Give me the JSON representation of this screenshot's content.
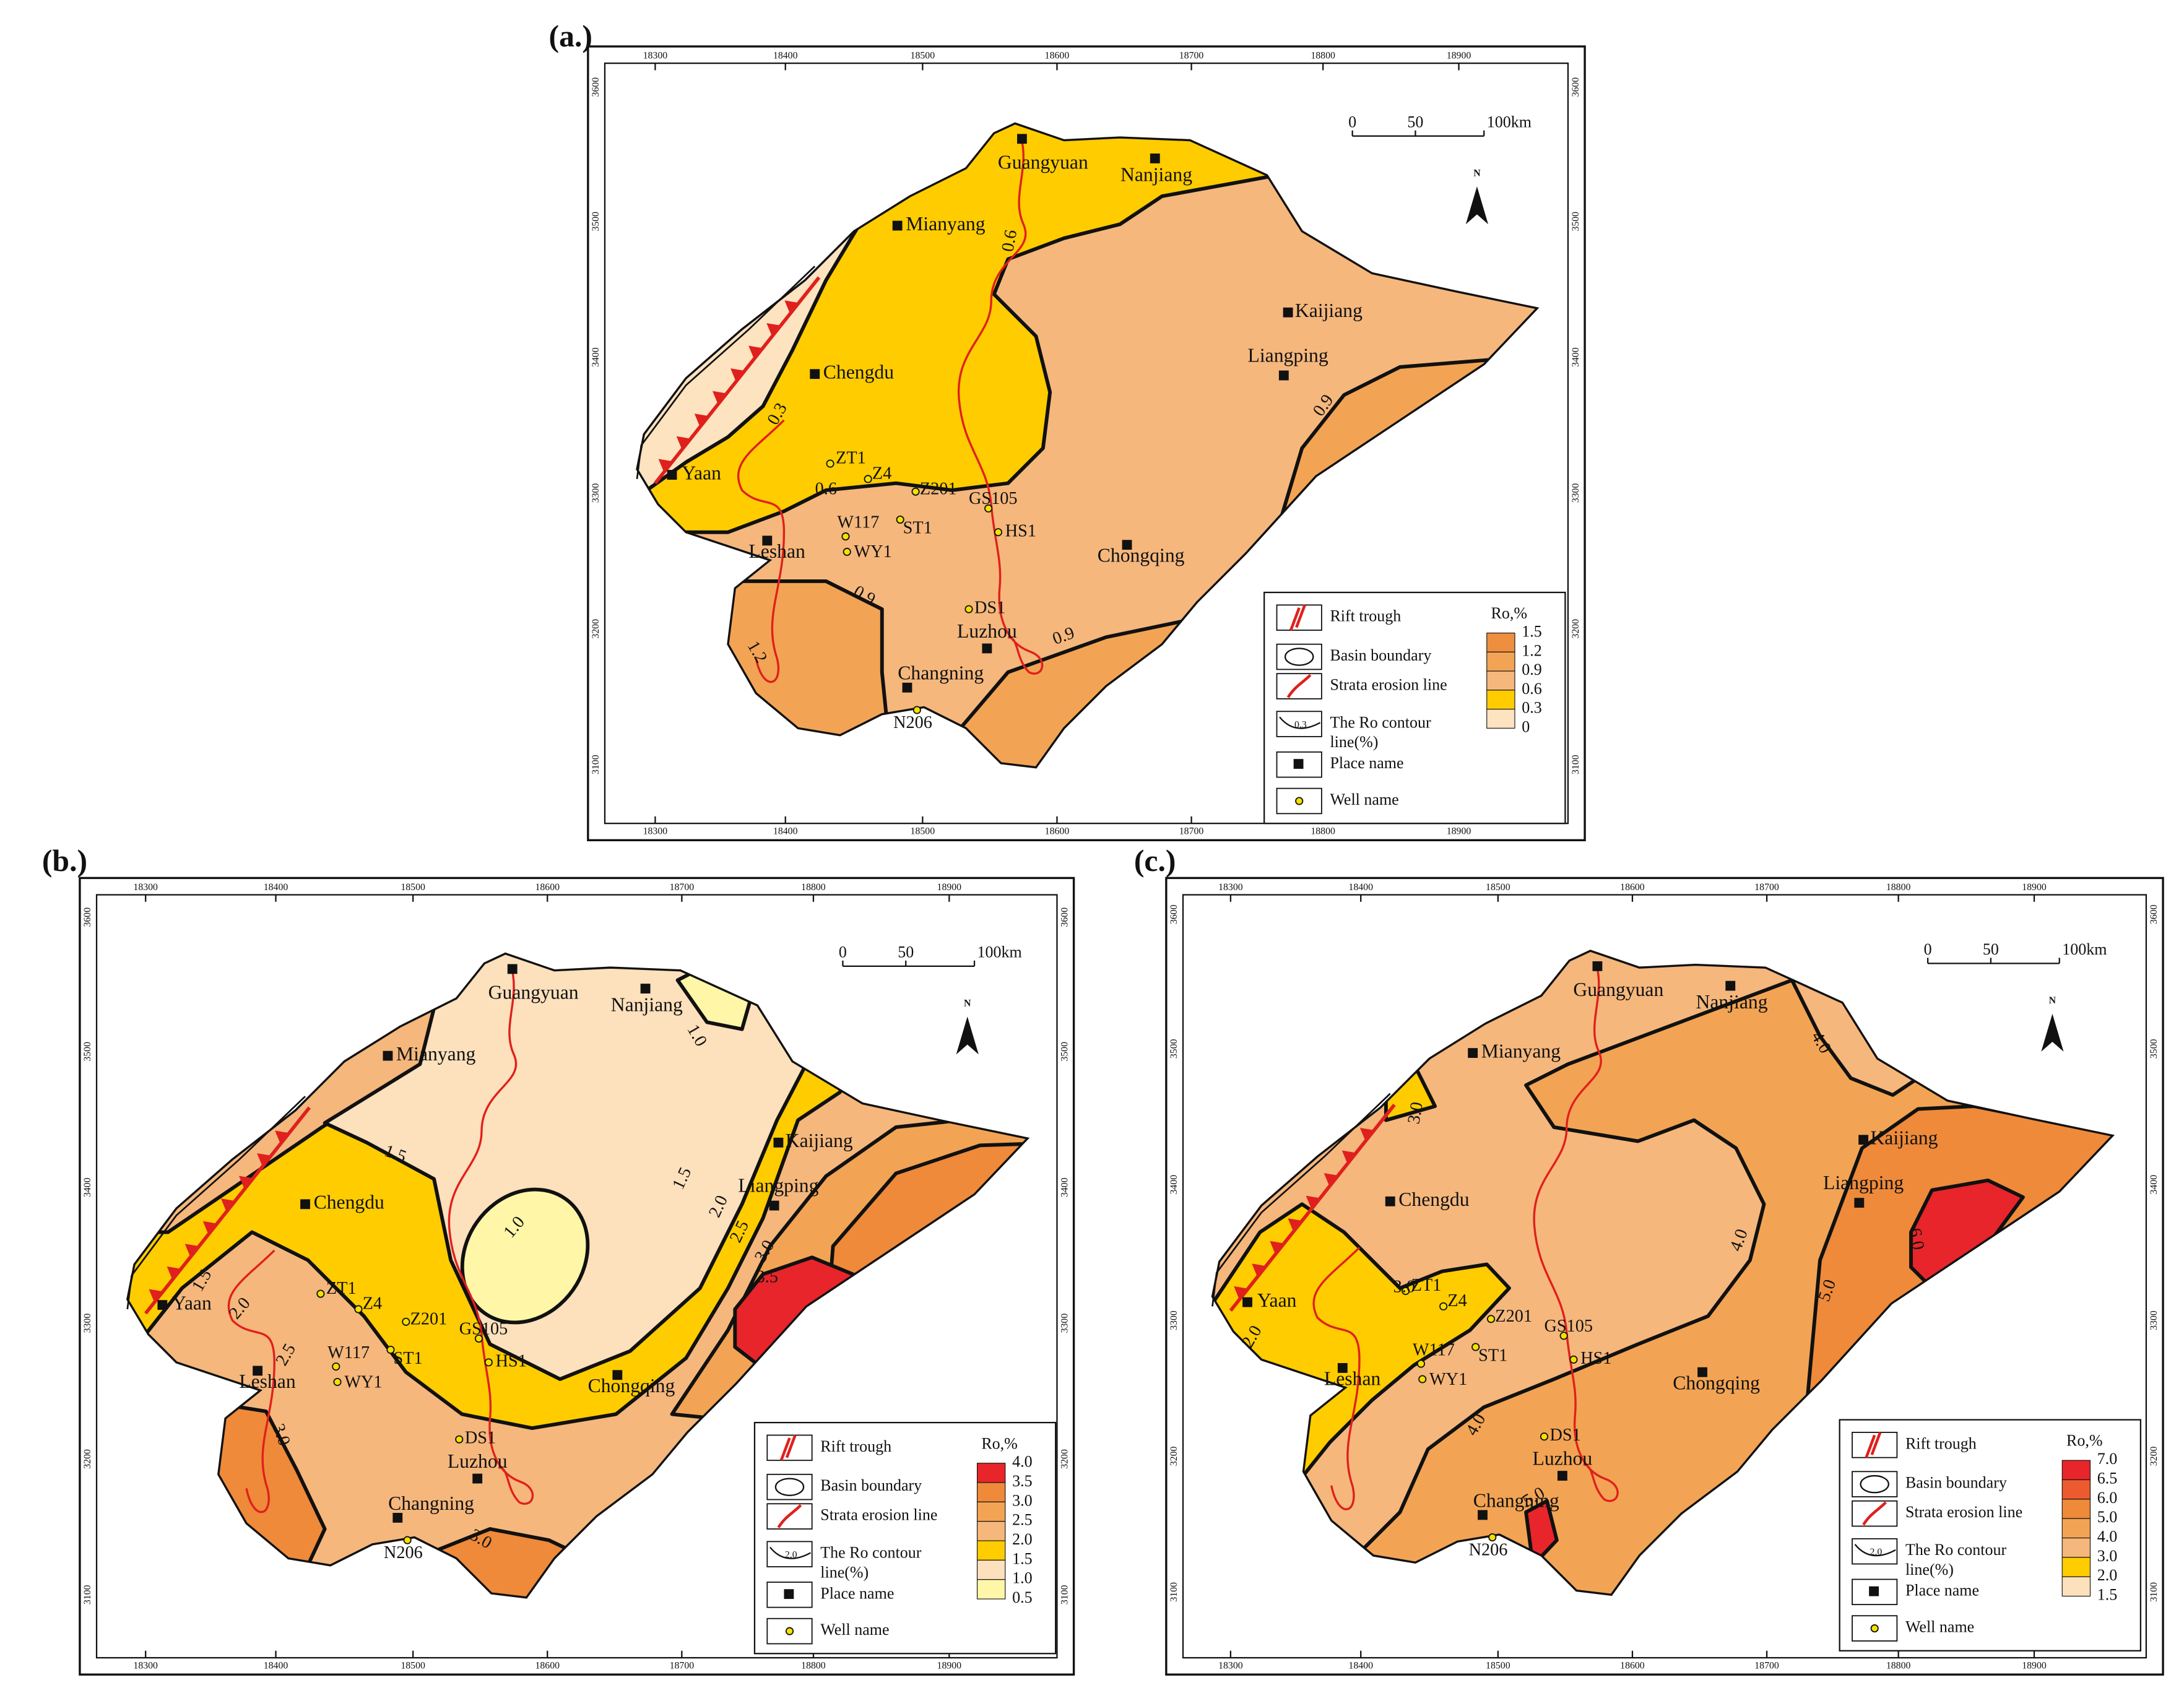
{
  "panels": [
    {
      "label": "(a.)",
      "scale_bar": [
        "0",
        "50",
        "100km"
      ],
      "north": "N",
      "x_labels": [
        "18300",
        "18400",
        "18500",
        "18600",
        "18700",
        "18800",
        "18900"
      ],
      "y_labels": [
        "3600",
        "3500",
        "3400",
        "3300",
        "3200",
        "3100"
      ],
      "places": [
        "Guangyuan",
        "Nanjiang",
        "Mianyang",
        "Kaijiang",
        "Liangping",
        "Chengdu",
        "Yaan",
        "Leshan",
        "Chongqing",
        "Luzhou",
        "Changning"
      ],
      "wells": [
        "ZT1",
        "Z4",
        "Z201",
        "GS105",
        "HS1",
        "ST1",
        "W117",
        "WY1",
        "DS1",
        "N206"
      ],
      "contours": [
        "0.6",
        "0.3",
        "0.6",
        "0.9",
        "1.2",
        "0.9",
        "0.9"
      ],
      "legend": {
        "items": [
          "Rift trough",
          "Basin boundary",
          "Strata erosion line",
          "The Ro contour",
          "line(%)",
          "Place name",
          "Well  name"
        ],
        "contour_sample": "0.3",
        "title": "Ro,%",
        "ramp": [
          "1.5",
          "1.2",
          "0.9",
          "0.6",
          "0.3",
          "0"
        ]
      }
    },
    {
      "label": "(b.)",
      "scale_bar": [
        "0",
        "50",
        "100km"
      ],
      "north": "N",
      "x_labels": [
        "18300",
        "18400",
        "18500",
        "18600",
        "18700",
        "18800",
        "18900"
      ],
      "y_labels": [
        "3600",
        "3500",
        "3400",
        "3300",
        "3200",
        "3100"
      ],
      "places": [
        "Guangyuan",
        "Nanjiang",
        "Mianyang",
        "Kaijiang",
        "Liangping",
        "Chengdu",
        "Yaan",
        "Leshan",
        "Chongqing",
        "Luzhou",
        "Changning"
      ],
      "wells": [
        "ZT1",
        "Z4",
        "Z201",
        "GS105",
        "HS1",
        "ST1",
        "W117",
        "WY1",
        "DS1",
        "N206"
      ],
      "contours": [
        "1.0",
        "1.5",
        "1.0",
        "1.5",
        "2.0",
        "2.5",
        "3.0",
        "3.5",
        "1.5",
        "2.0",
        "2.5",
        "3.0",
        "3.0"
      ],
      "legend": {
        "items": [
          "Rift trough",
          "Basin boundary",
          "Strata erosion line",
          "The Ro contour",
          "line(%)",
          "Place name",
          "Well  name"
        ],
        "contour_sample": "2.0",
        "title": "Ro,%",
        "ramp": [
          "4.0",
          "3.5",
          "3.0",
          "2.5",
          "2.0",
          "1.5",
          "1.0",
          "0.5"
        ]
      }
    },
    {
      "label": "(c.)",
      "scale_bar": [
        "0",
        "50",
        "100km"
      ],
      "north": "N",
      "x_labels": [
        "18300",
        "18400",
        "18500",
        "18600",
        "18700",
        "18800",
        "18900"
      ],
      "y_labels": [
        "3600",
        "3500",
        "3400",
        "3300",
        "3200",
        "3100"
      ],
      "places": [
        "Guangyuan",
        "Nanjiang",
        "Mianyang",
        "Kaijiang",
        "Liangping",
        "Chengdu",
        "Yaan",
        "Leshan",
        "Chongqing",
        "Luzhou",
        "Changning"
      ],
      "wells": [
        "ZT1",
        "Z4",
        "Z201",
        "GS105",
        "HS1",
        "ST1",
        "W117",
        "WY1",
        "DS1",
        "N206"
      ],
      "contours": [
        "4.0",
        "3.0",
        "4.0",
        "5.0",
        "6.0",
        "3.0",
        "2.0",
        "4.0",
        "5.0"
      ],
      "legend": {
        "items": [
          "Rift trough",
          "Basin boundary",
          "Strata erosion line",
          "The Ro contour",
          "line(%)",
          "Place name",
          "Well  name"
        ],
        "contour_sample": "2.0",
        "title": "Ro,%",
        "ramp": [
          "7.0",
          "6.5",
          "6.0",
          "5.0",
          "4.0",
          "3.0",
          "2.0",
          "1.5"
        ]
      }
    }
  ]
}
